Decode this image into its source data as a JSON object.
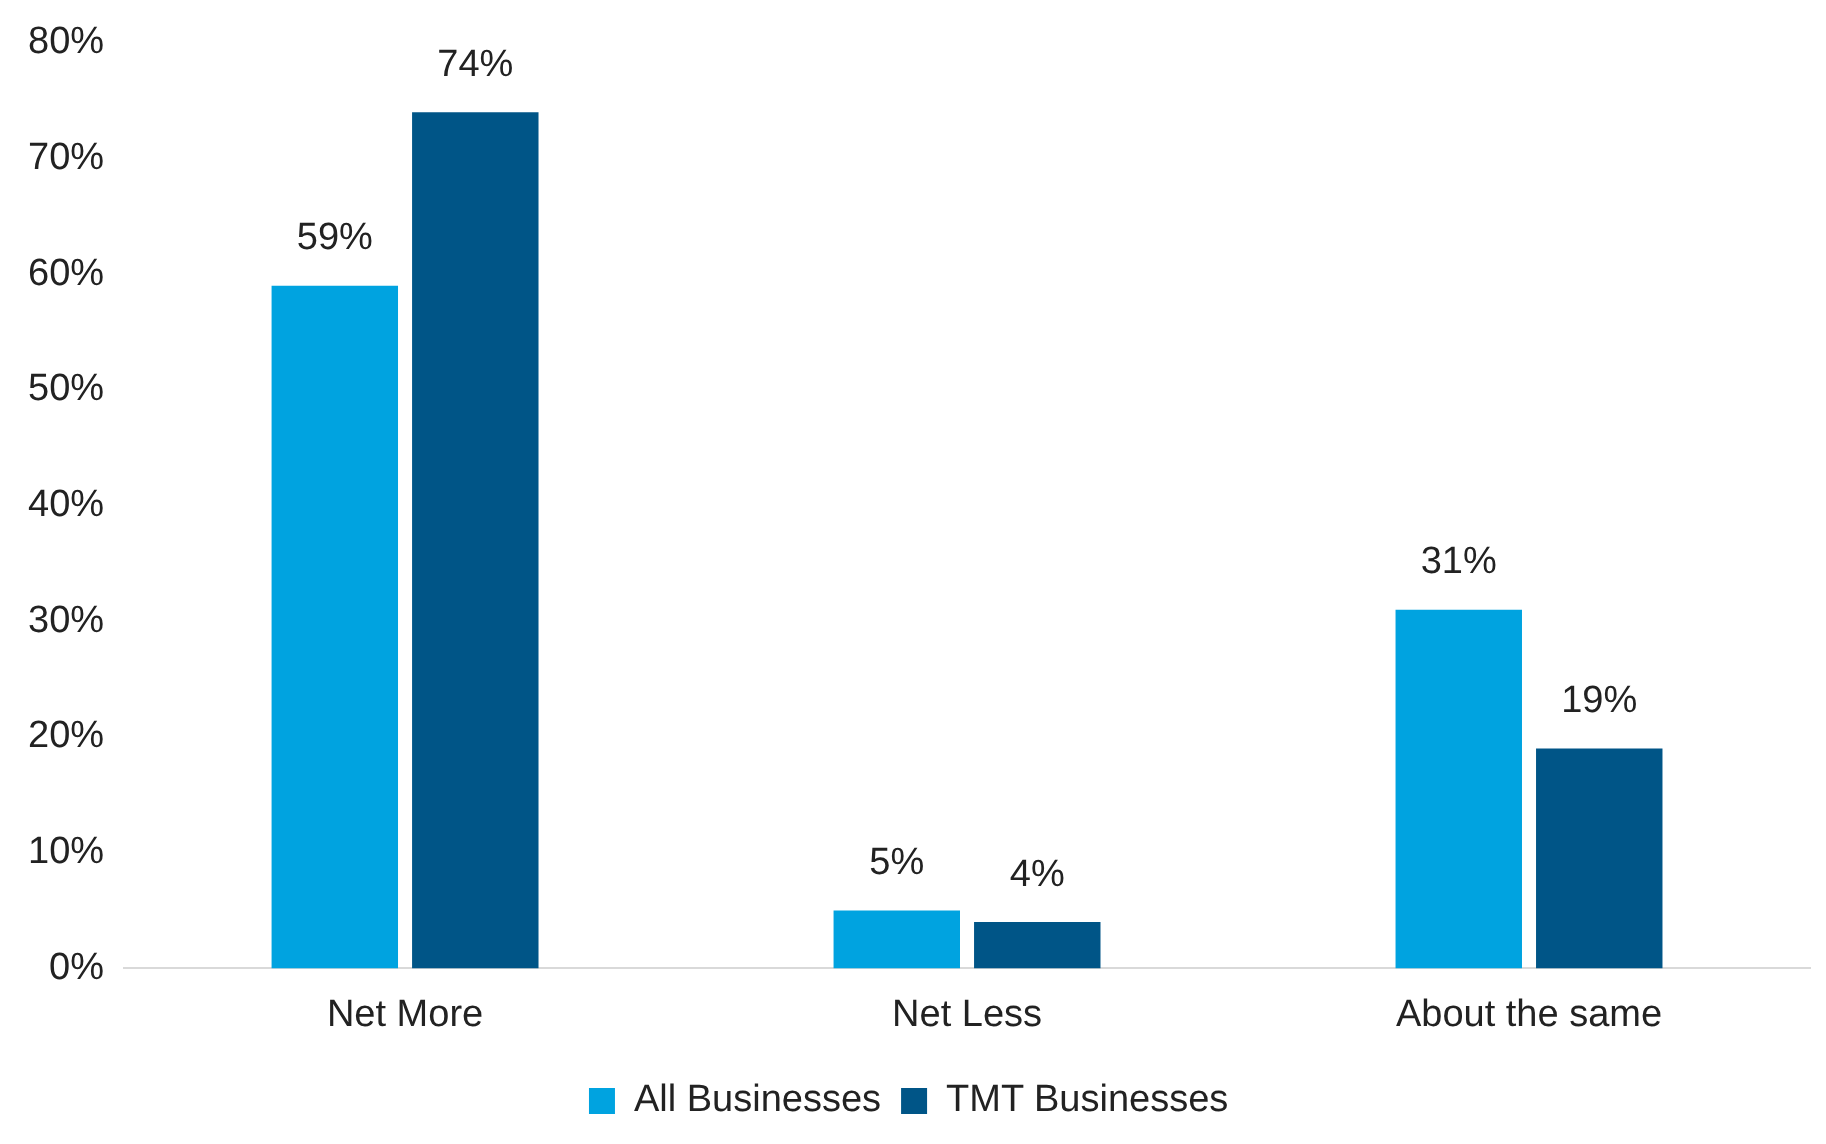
{
  "chart_data": {
    "type": "bar",
    "categories": [
      "Net More",
      "Net Less",
      "About the same"
    ],
    "series": [
      {
        "name": "All Businesses",
        "color": "#00a3e0",
        "values": [
          59,
          5,
          31
        ],
        "value_labels": [
          "59%",
          "5%",
          "31%"
        ]
      },
      {
        "name": "TMT Businesses",
        "color": "#005587",
        "values": [
          74,
          4,
          19
        ],
        "value_labels": [
          "74%",
          "4%",
          "19%"
        ]
      }
    ],
    "ylim": [
      0,
      80
    ],
    "yticks": [
      {
        "value": 0,
        "label": "0%"
      },
      {
        "value": 10,
        "label": "10%"
      },
      {
        "value": 20,
        "label": "20%"
      },
      {
        "value": 30,
        "label": "30%"
      },
      {
        "value": 40,
        "label": "40%"
      },
      {
        "value": 50,
        "label": "50%"
      },
      {
        "value": 60,
        "label": "60%"
      },
      {
        "value": 70,
        "label": "70%"
      },
      {
        "value": 80,
        "label": "80%"
      }
    ],
    "grid": false,
    "legend": "bottom"
  }
}
